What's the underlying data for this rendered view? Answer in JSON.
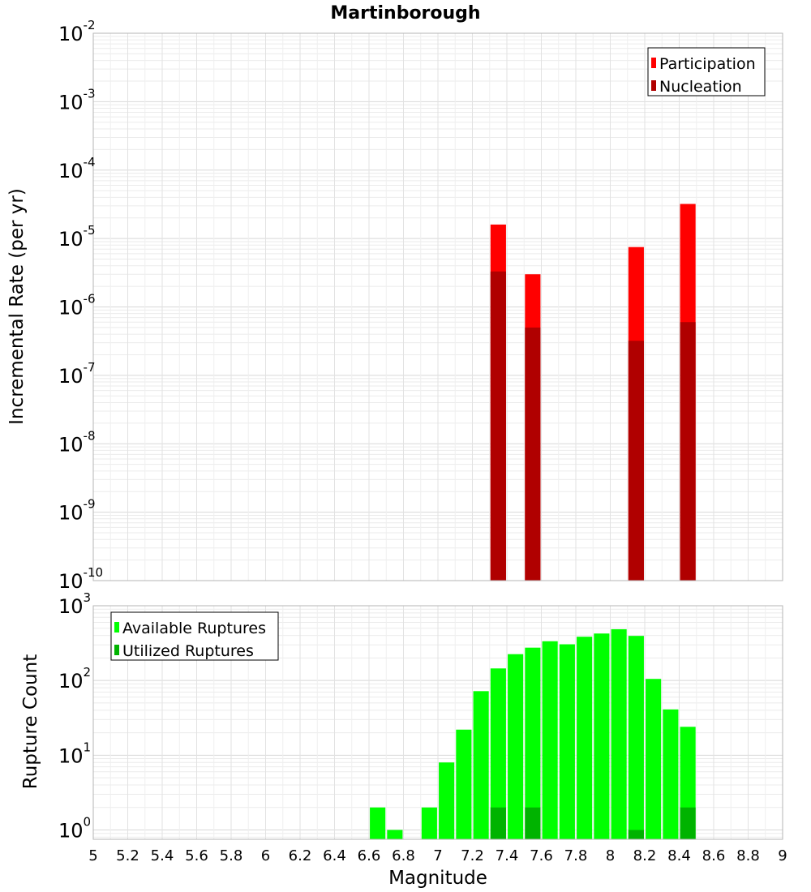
{
  "title": "Martinborough",
  "x_tick_labels": [
    "5",
    "5.2",
    "5.4",
    "5.6",
    "5.8",
    "6",
    "6.2",
    "6.4",
    "6.6",
    "6.8",
    "7",
    "7.2",
    "7.4",
    "7.6",
    "7.8",
    "8",
    "8.2",
    "8.4",
    "8.6",
    "8.8",
    "9"
  ],
  "top_y_tick_labels": [
    {
      "base": "10",
      "exp": "-10"
    },
    {
      "base": "10",
      "exp": "-9"
    },
    {
      "base": "10",
      "exp": "-8"
    },
    {
      "base": "10",
      "exp": "-7"
    },
    {
      "base": "10",
      "exp": "-6"
    },
    {
      "base": "10",
      "exp": "-5"
    },
    {
      "base": "10",
      "exp": "-4"
    },
    {
      "base": "10",
      "exp": "-3"
    },
    {
      "base": "10",
      "exp": "-2"
    }
  ],
  "bottom_y_tick_labels": [
    {
      "base": "10",
      "exp": "0"
    },
    {
      "base": "10",
      "exp": "1"
    },
    {
      "base": "10",
      "exp": "2"
    },
    {
      "base": "10",
      "exp": "3"
    }
  ],
  "chart_data": [
    {
      "type": "bar",
      "title": "Martinborough",
      "xlabel": "",
      "ylabel": "Incremental Rate (per yr)",
      "xlim": [
        5,
        9
      ],
      "ylim": [
        1e-10,
        0.01
      ],
      "yscale": "log",
      "bar_width": 0.09,
      "grid": true,
      "legend_position": "top-right",
      "series": [
        {
          "name": "Participation",
          "color": "#ff0000",
          "x": [
            7.35,
            7.55,
            8.15,
            8.45
          ],
          "values": [
            1.6e-05,
            3e-06,
            7.5e-06,
            3.2e-05
          ]
        },
        {
          "name": "Nucleation",
          "color": "#b00000",
          "x": [
            7.35,
            7.55,
            8.15,
            8.45
          ],
          "values": [
            3.3e-06,
            5e-07,
            3.2e-07,
            6e-07
          ]
        }
      ]
    },
    {
      "type": "bar",
      "title": "",
      "xlabel": "Magnitude",
      "ylabel": "Rupture Count",
      "xlim": [
        5,
        9
      ],
      "ylim": [
        0.75,
        1000
      ],
      "yscale": "log",
      "bar_width": 0.09,
      "grid": true,
      "legend_position": "top-left",
      "series": [
        {
          "name": "Available Ruptures",
          "color": "#00ff00",
          "x": [
            6.65,
            6.75,
            6.95,
            7.05,
            7.15,
            7.25,
            7.35,
            7.45,
            7.55,
            7.65,
            7.75,
            7.85,
            7.95,
            8.05,
            8.15,
            8.25,
            8.35,
            8.45
          ],
          "values": [
            2,
            1,
            2,
            8,
            22,
            72,
            145,
            225,
            275,
            335,
            305,
            385,
            425,
            485,
            395,
            105,
            41,
            24
          ]
        },
        {
          "name": "Utilized Ruptures",
          "color": "#00b300",
          "x": [
            7.35,
            7.55,
            8.15,
            8.45
          ],
          "values": [
            2,
            2,
            1,
            2
          ]
        }
      ]
    }
  ]
}
